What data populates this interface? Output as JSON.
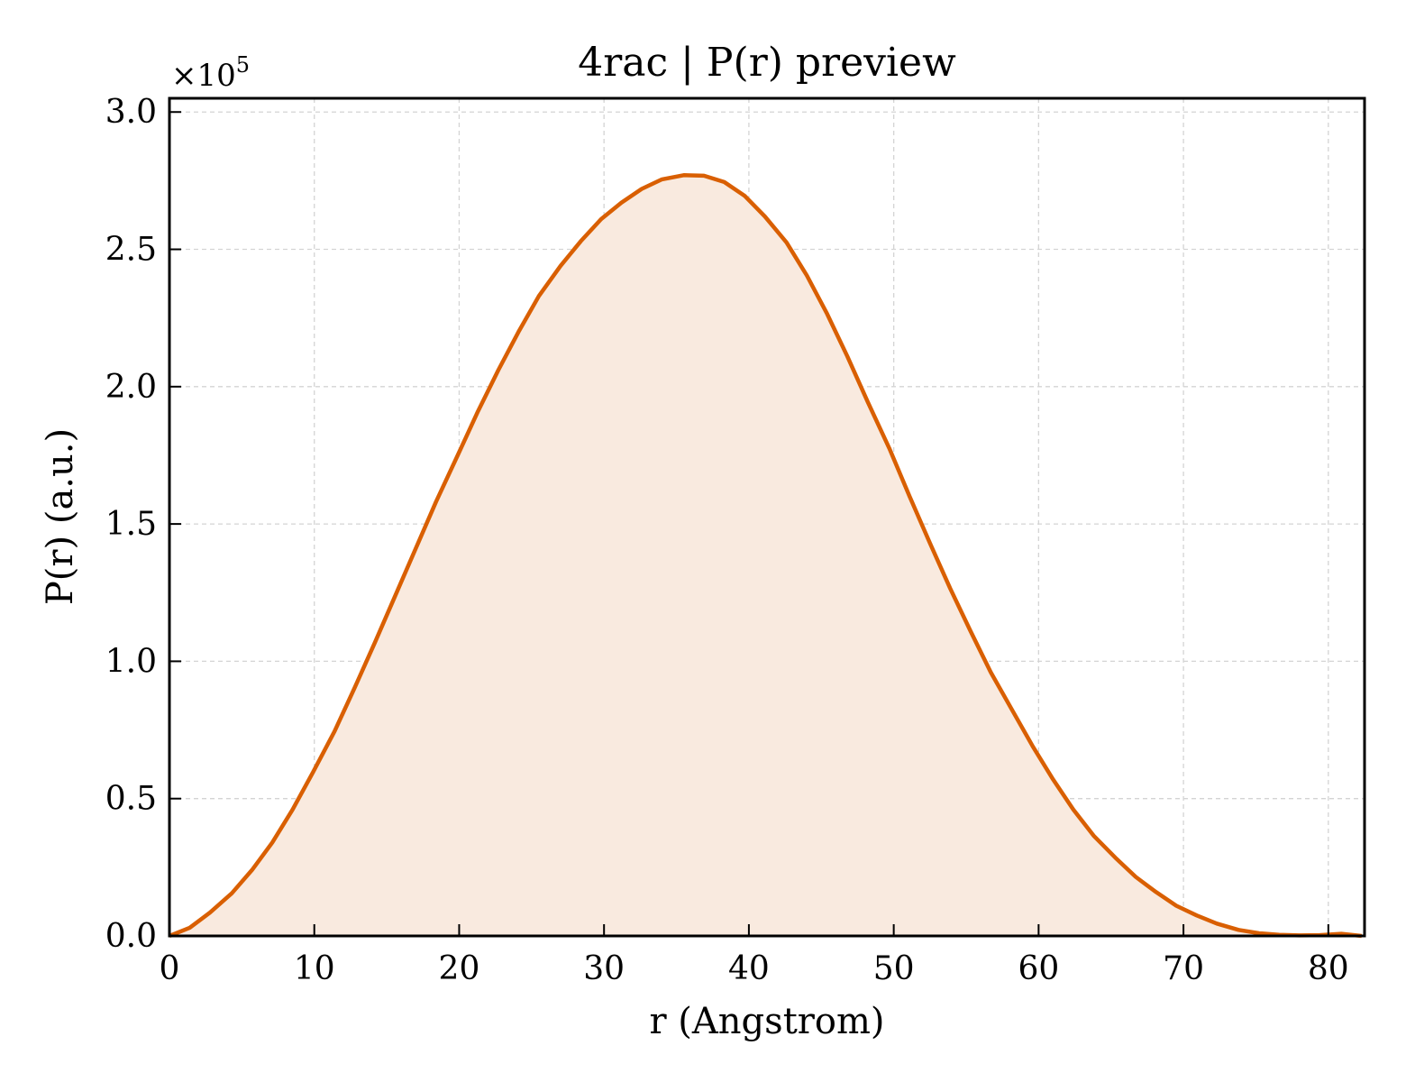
{
  "chart_data": {
    "type": "area",
    "title": "4rac | P(r) preview",
    "xlabel": "r (Angstrom)",
    "ylabel": "P(r) (a.u.)",
    "y_multiplier_base": "×10",
    "y_multiplier_exp": "5",
    "xlim": [
      0,
      82.5
    ],
    "ylim": [
      0,
      3.05
    ],
    "x_ticks": [
      0,
      10,
      20,
      30,
      40,
      50,
      60,
      70,
      80
    ],
    "x_tick_labels": [
      "0",
      "10",
      "20",
      "30",
      "40",
      "50",
      "60",
      "70",
      "80"
    ],
    "y_ticks": [
      0,
      0.5,
      1.0,
      1.5,
      2.0,
      2.5,
      3.0
    ],
    "y_tick_labels": [
      "0.0",
      "0.5",
      "1.0",
      "1.5",
      "2.0",
      "2.5",
      "3.0"
    ],
    "grid": true,
    "line_color": "#d95f02",
    "fill_color": "#f9eadf",
    "series": [
      {
        "x": [
          0,
          1.4,
          2.8,
          4.3,
          5.7,
          7.1,
          8.5,
          9.9,
          11.4,
          12.8,
          14.2,
          15.6,
          17.0,
          18.4,
          19.9,
          21.3,
          22.7,
          24.1,
          25.5,
          27.0,
          28.4,
          29.8,
          31.2,
          32.6,
          34.0,
          35.5,
          36.9,
          38.3,
          39.7,
          41.1,
          42.6,
          44.0,
          45.4,
          46.8,
          48.2,
          49.7,
          51.1,
          52.5,
          53.9,
          55.3,
          56.7,
          58.2,
          59.6,
          61.0,
          62.4,
          63.8,
          65.3,
          66.7,
          68.1,
          69.5,
          70.9,
          72.3,
          73.8,
          75.2,
          76.6,
          78.0,
          79.4,
          80.9,
          82.3
        ],
        "values": [
          0.0,
          0.03,
          0.085,
          0.155,
          0.24,
          0.34,
          0.46,
          0.595,
          0.745,
          0.905,
          1.07,
          1.24,
          1.41,
          1.58,
          1.75,
          1.91,
          2.06,
          2.2,
          2.33,
          2.44,
          2.53,
          2.61,
          2.67,
          2.72,
          2.755,
          2.77,
          2.768,
          2.745,
          2.695,
          2.62,
          2.525,
          2.405,
          2.265,
          2.11,
          1.945,
          1.775,
          1.6,
          1.43,
          1.265,
          1.11,
          0.96,
          0.82,
          0.69,
          0.57,
          0.46,
          0.365,
          0.285,
          0.215,
          0.16,
          0.11,
          0.075,
          0.045,
          0.022,
          0.01,
          0.004,
          0.002,
          0.003,
          0.008,
          0.0
        ]
      }
    ]
  }
}
